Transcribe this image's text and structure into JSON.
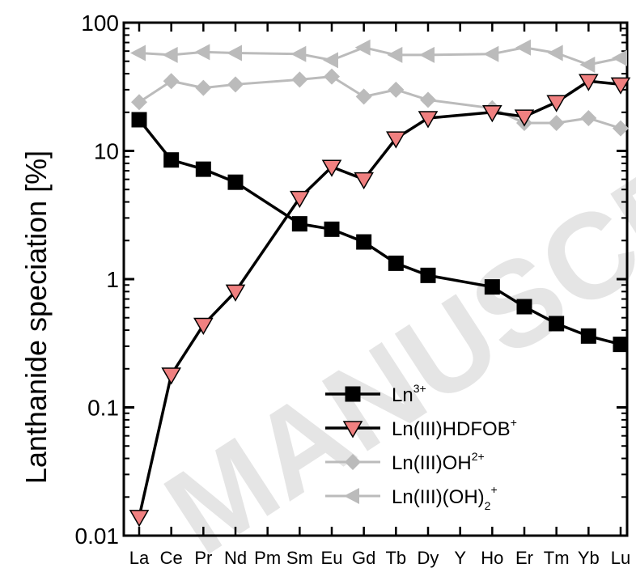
{
  "chart_data": {
    "type": "line",
    "ylabel": "Lanthanide speciation [%]",
    "xlabel": "",
    "yscale": "log",
    "ylim": [
      0.01,
      100
    ],
    "yticks": [
      {
        "value": 0.01,
        "label": "0.01"
      },
      {
        "value": 0.1,
        "label": "0.1"
      },
      {
        "value": 1,
        "label": "1"
      },
      {
        "value": 10,
        "label": "10"
      },
      {
        "value": 100,
        "label": "100"
      }
    ],
    "categories": [
      "La",
      "Ce",
      "Pr",
      "Nd",
      "Pm",
      "Sm",
      "Eu",
      "Gd",
      "Tb",
      "Dy",
      "Y",
      "Ho",
      "Er",
      "Tm",
      "Yb",
      "Lu"
    ],
    "legend_position": "bottom-right",
    "series": [
      {
        "name": "Ln",
        "name_sup": "3+",
        "name_sub": "",
        "name_sup2": "",
        "marker": "square",
        "color": "#000000",
        "marker_fill": "#000000",
        "values": [
          17.5,
          8.5,
          7.2,
          5.7,
          null,
          2.7,
          2.45,
          1.95,
          1.33,
          1.07,
          null,
          0.87,
          0.61,
          0.45,
          0.36,
          0.31
        ]
      },
      {
        "name": "Ln(III)HDFOB",
        "name_sup": "+",
        "name_sub": "",
        "name_sup2": "",
        "marker": "triangle-down",
        "color": "#000000",
        "marker_fill": "#f08080",
        "values": [
          0.014,
          0.18,
          0.44,
          0.8,
          null,
          4.3,
          7.5,
          6.0,
          12.5,
          18.0,
          null,
          20.0,
          18.5,
          24.0,
          35.0,
          33.0
        ]
      },
      {
        "name": "Ln(III)OH",
        "name_sup": "2+",
        "name_sub": "",
        "name_sup2": "",
        "marker": "diamond",
        "color": "#bbbbbb",
        "marker_fill": "#bbbbbb",
        "values": [
          24.0,
          35.0,
          31.0,
          33.0,
          null,
          36.0,
          38.0,
          26.5,
          30.0,
          25.0,
          null,
          21.5,
          16.5,
          16.5,
          18.0,
          15.0
        ]
      },
      {
        "name": "Ln(III)(OH)",
        "name_sup": "+",
        "name_sub": "2",
        "name_sup2": "",
        "marker": "triangle-left",
        "color": "#bbbbbb",
        "marker_fill": "#bbbbbb",
        "values": [
          58.0,
          56.0,
          59.0,
          58.0,
          null,
          57.0,
          51.0,
          64.0,
          56.0,
          56.0,
          null,
          57.0,
          64.0,
          58.0,
          47.0,
          53.0
        ]
      }
    ],
    "watermark": "MANUSCRIPT"
  }
}
